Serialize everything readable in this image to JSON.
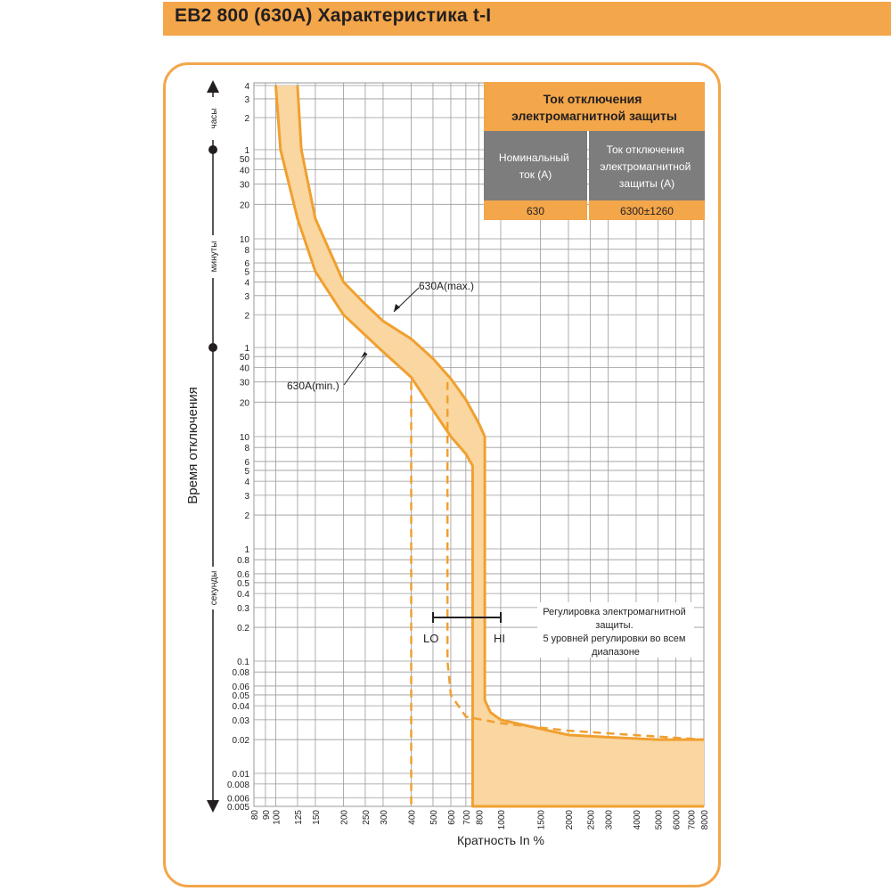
{
  "header": {
    "title": "EB2 800 (630A) Характеристика t-I"
  },
  "colors": {
    "accent": "#f3a64a",
    "curve": "#f0a030",
    "band": "#fad6a0",
    "table_head": "#f3a64a",
    "table_sub": "#7d7d7d",
    "grid": "#9a9a9a"
  },
  "chart_data": {
    "type": "line",
    "title": "EB2 800 (630A) Характеристика t-I",
    "xlabel": "Кратность In %",
    "ylabel": "Время отключения",
    "x_scale": "log",
    "y_scale": "log",
    "xlim": [
      80,
      8000
    ],
    "ylim": [
      0.005,
      14400
    ],
    "grid": true,
    "x_ticks": [
      "80",
      "90",
      "100",
      "125",
      "150",
      "200",
      "250",
      "300",
      "400",
      "500",
      "600",
      "700",
      "800",
      "1000",
      "1500",
      "2000",
      "2500",
      "3000",
      "4000",
      "5000",
      "6000",
      "7000",
      "8000"
    ],
    "y_ticks_seconds": [
      "0.005",
      "0.006",
      "0.008",
      "0.01",
      "0.02",
      "0.03",
      "0.04",
      "0.05",
      "0.06",
      "0.08",
      "0.1",
      "0.2",
      "0.3",
      "0.4",
      "0.5",
      "0.6",
      "0.8",
      "1",
      "2",
      "3",
      "4",
      "5",
      "6",
      "8",
      "10",
      "20",
      "30",
      "40",
      "50"
    ],
    "y_ticks_minutes": [
      "1",
      "2",
      "3",
      "4",
      "5",
      "6",
      "8",
      "10",
      "20",
      "30",
      "40",
      "50"
    ],
    "y_ticks_hours": [
      "1",
      "2",
      "3",
      "4"
    ],
    "time_units": [
      "секунды",
      "минуты",
      "часы"
    ],
    "series": [
      {
        "name": "630A(max.)",
        "x": [
          125,
          130,
          150,
          200,
          250,
          300,
          400,
          500,
          600,
          700,
          800,
          850,
          850,
          900,
          1000,
          1500,
          2000,
          3000,
          5000,
          8000
        ],
        "y": [
          14400,
          3600,
          900,
          240,
          150,
          105,
          72,
          48,
          32,
          21,
          13,
          10,
          0.045,
          0.035,
          0.03,
          0.025,
          0.022,
          0.021,
          0.02,
          0.02
        ]
      },
      {
        "name": "630A(min.)",
        "x": [
          100,
          105,
          125,
          150,
          200,
          250,
          300,
          400,
          500,
          600,
          700,
          750,
          750,
          800,
          1000,
          2000,
          3000,
          5000,
          8000
        ],
        "y": [
          14400,
          3600,
          900,
          300,
          120,
          78,
          55,
          33,
          17,
          10,
          7,
          5.5,
          0.005,
          0.005,
          0.005,
          0.005,
          0.005,
          0.005,
          0.005
        ]
      },
      {
        "name": "LO",
        "x": [
          400,
          400,
          400
        ],
        "y": [
          30,
          2,
          0.005
        ]
      },
      {
        "name": "HI",
        "x": [
          580,
          580,
          600,
          700,
          1000,
          2000,
          8000
        ],
        "y": [
          30,
          0.1,
          0.05,
          0.032,
          0.028,
          0.024,
          0.02
        ]
      }
    ],
    "annotations": [
      {
        "text": "630A(max.)"
      },
      {
        "text": "630A(min.)"
      },
      {
        "text": "LO"
      },
      {
        "text": "HI"
      },
      {
        "text": "Регулировка электромагнитной защиты. 5 уровней регулировки во всем диапазоне"
      }
    ]
  },
  "labels": {
    "ylabel": "Время отключения",
    "xlabel": "Кратность In %",
    "unit_seconds": "секунды",
    "unit_minutes": "минуты",
    "unit_hours": "часы",
    "max_label": "630A(max.)",
    "min_label": "630A(min.)",
    "lo": "LO",
    "hi": "HI",
    "note": [
      "Регулировка электромагнитной",
      "защиты.",
      "5 уровней регулировки во всем",
      "диапазоне"
    ]
  },
  "table": {
    "title_lines": [
      "Ток отключения",
      "электромагнитной защиты"
    ],
    "col1_header": [
      "Номинальный",
      "ток (А)"
    ],
    "col2_header": [
      "Ток отключения",
      "электромагнитной",
      "защиты (А)"
    ],
    "row": {
      "rated": "630",
      "trip": "6300±1260"
    }
  }
}
